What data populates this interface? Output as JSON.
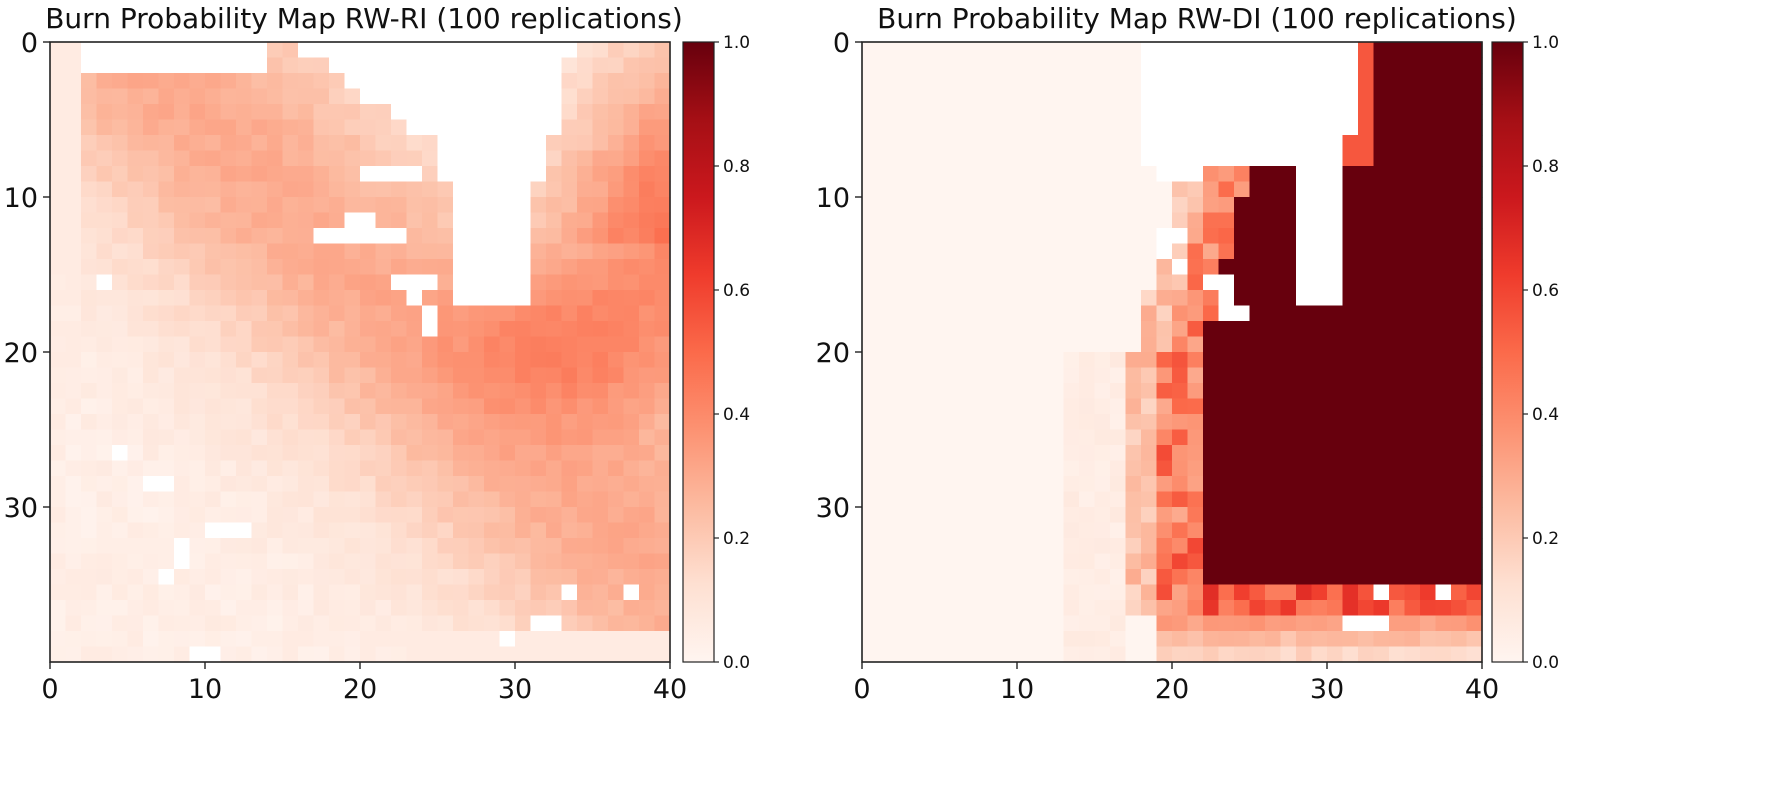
{
  "chart_data": [
    {
      "type": "heatmap",
      "title": "Burn Probability Map RW-RI (100 replications)",
      "xlabel": "",
      "ylabel": "",
      "grid_size": [
        40,
        40
      ],
      "xlim": [
        0,
        40
      ],
      "ylim": [
        40,
        0
      ],
      "x_ticks": [
        0,
        10,
        20,
        30,
        40
      ],
      "y_ticks": [
        0,
        10,
        20,
        30
      ],
      "colormap": "Reds",
      "colorbar": {
        "min": 0.0,
        "max": 1.0,
        "ticks": [
          "0.0",
          "0.2",
          "0.4",
          "0.6",
          "0.8",
          "1.0"
        ]
      },
      "grid": false,
      "description_values": {
        "background_probability": 0.05,
        "band_peak_probability": 0.3,
        "northeast_probability": 0.6,
        "north_unburned_notch_cols": [
          22,
          32
        ],
        "north_unburned_notch_rows": [
          0,
          16
        ]
      },
      "unburned_cells": [
        [
          8,
          20
        ],
        [
          8,
          21
        ],
        [
          8,
          22
        ],
        [
          8,
          23
        ],
        [
          11,
          19
        ],
        [
          11,
          20
        ],
        [
          12,
          17
        ],
        [
          12,
          18
        ],
        [
          12,
          19
        ],
        [
          12,
          20
        ],
        [
          12,
          21
        ],
        [
          12,
          22
        ],
        [
          15,
          3
        ],
        [
          15,
          22
        ],
        [
          15,
          23
        ],
        [
          15,
          24
        ],
        [
          16,
          23
        ],
        [
          17,
          24
        ],
        [
          18,
          24
        ],
        [
          26,
          4
        ],
        [
          28,
          6
        ],
        [
          28,
          7
        ],
        [
          31,
          10
        ],
        [
          31,
          11
        ],
        [
          31,
          12
        ],
        [
          32,
          8
        ],
        [
          33,
          8
        ],
        [
          34,
          7
        ],
        [
          35,
          33
        ],
        [
          35,
          37
        ],
        [
          37,
          31
        ],
        [
          37,
          32
        ],
        [
          38,
          29
        ],
        [
          39,
          9
        ],
        [
          39,
          10
        ]
      ]
    },
    {
      "type": "heatmap",
      "title": "Burn Probability Map RW-DI (100 replications)",
      "xlabel": "",
      "ylabel": "",
      "grid_size": [
        40,
        40
      ],
      "xlim": [
        0,
        40
      ],
      "ylim": [
        40,
        0
      ],
      "x_ticks": [
        0,
        10,
        20,
        30,
        40
      ],
      "y_ticks": [
        0,
        10,
        20,
        30
      ],
      "colormap": "Reds",
      "colorbar": {
        "min": 0.0,
        "max": 1.0,
        "ticks": [
          "0.0",
          "0.2",
          "0.4",
          "0.6",
          "0.8",
          "1.0"
        ]
      },
      "grid": false,
      "description_values": {
        "west_probability": 0.0,
        "burned_region_probability": 1.0,
        "fringe_probability": 0.35,
        "burned_region_cols": [
          20,
          40
        ],
        "burned_region_rows": [
          0,
          36
        ]
      },
      "unburned_cells": [
        [
          8,
          19
        ],
        [
          8,
          20
        ],
        [
          8,
          21
        ],
        [
          12,
          19
        ],
        [
          12,
          20
        ],
        [
          13,
          19
        ],
        [
          14,
          20
        ],
        [
          15,
          22
        ],
        [
          15,
          23
        ],
        [
          16,
          23
        ],
        [
          17,
          23
        ],
        [
          17,
          24
        ],
        [
          35,
          33
        ],
        [
          35,
          37
        ],
        [
          37,
          31
        ],
        [
          37,
          32
        ],
        [
          37,
          33
        ]
      ]
    }
  ]
}
